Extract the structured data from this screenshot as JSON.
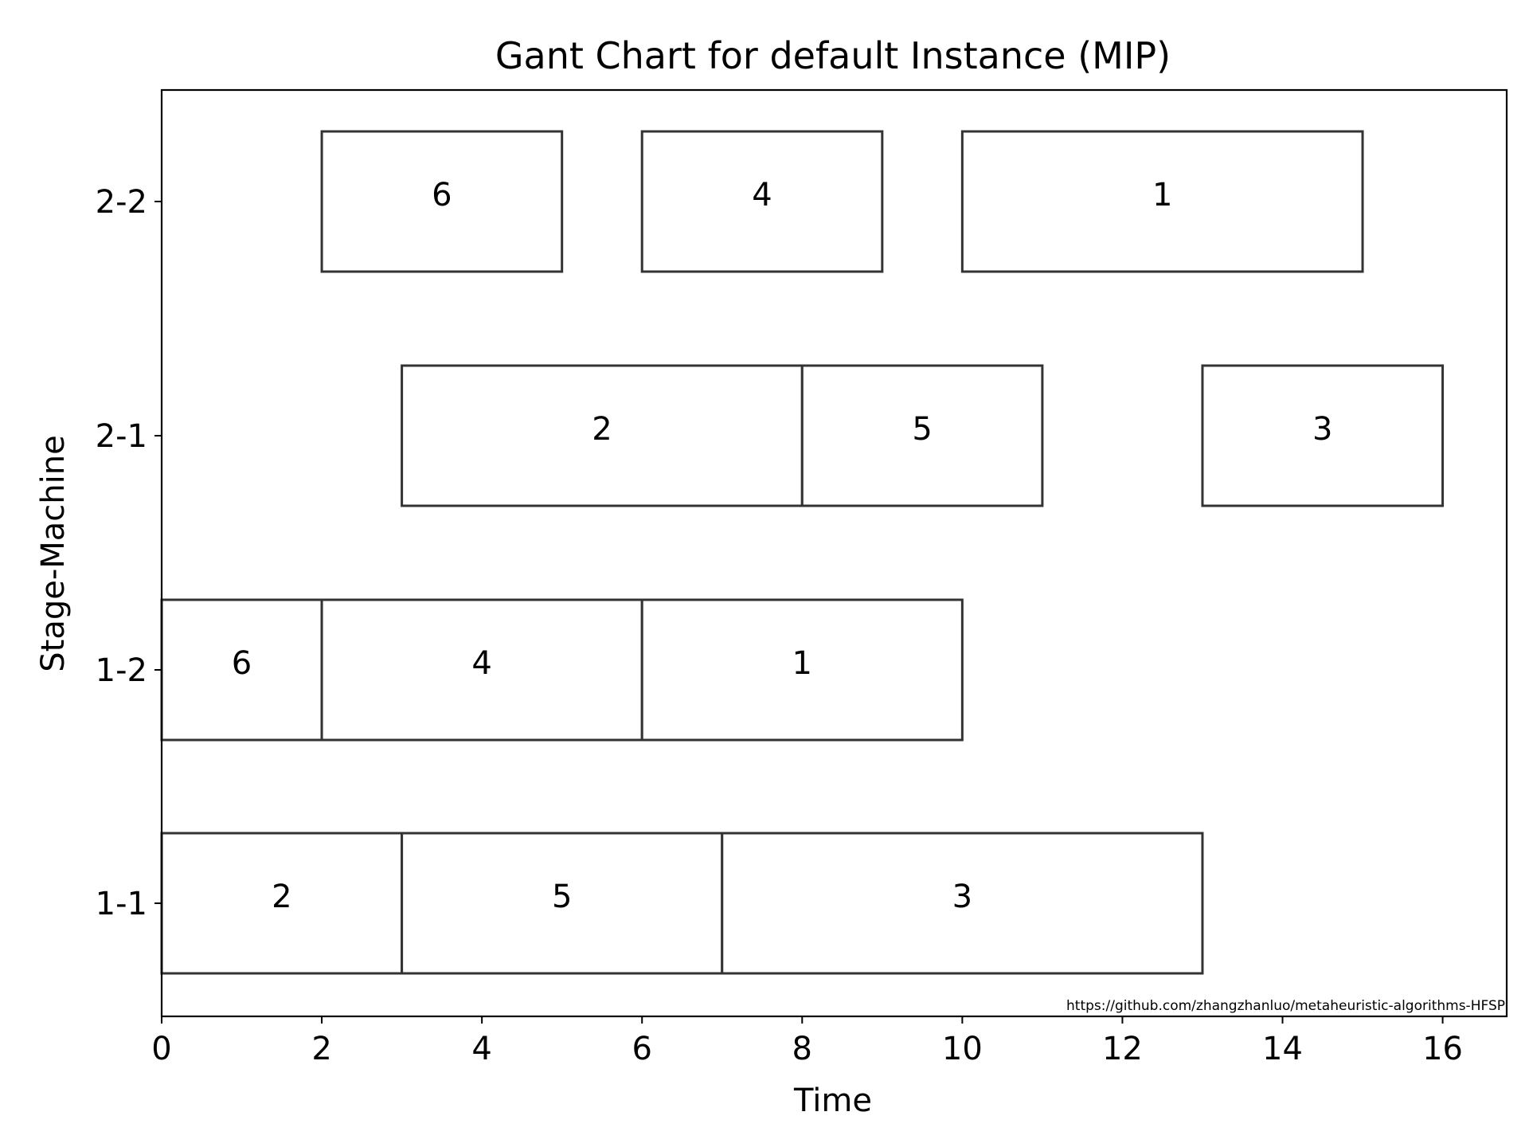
{
  "chart_data": {
    "type": "gantt",
    "title": "Gant Chart for default Instance (MIP)",
    "xlabel": "Time",
    "ylabel": "Stage-Machine",
    "xlim": [
      0,
      16.8
    ],
    "xticks": [
      0,
      2,
      4,
      6,
      8,
      10,
      12,
      14,
      16
    ],
    "machines": [
      "1-1",
      "1-2",
      "2-1",
      "2-2"
    ],
    "watermark": "https://github.com/zhangzhanluo/metaheuristic-algorithms-HFSP",
    "colors": {
      "bar_edge": "#333333",
      "bar_fill": "#ffffff",
      "axes": "#000000"
    },
    "tasks": [
      {
        "machine": "1-1",
        "job": "2",
        "start": 0,
        "end": 3
      },
      {
        "machine": "1-1",
        "job": "5",
        "start": 3,
        "end": 7
      },
      {
        "machine": "1-1",
        "job": "3",
        "start": 7,
        "end": 13
      },
      {
        "machine": "1-2",
        "job": "6",
        "start": 0,
        "end": 2
      },
      {
        "machine": "1-2",
        "job": "4",
        "start": 2,
        "end": 6
      },
      {
        "machine": "1-2",
        "job": "1",
        "start": 6,
        "end": 10
      },
      {
        "machine": "2-1",
        "job": "2",
        "start": 3,
        "end": 8
      },
      {
        "machine": "2-1",
        "job": "5",
        "start": 8,
        "end": 11
      },
      {
        "machine": "2-1",
        "job": "3",
        "start": 13,
        "end": 16
      },
      {
        "machine": "2-2",
        "job": "6",
        "start": 2,
        "end": 5
      },
      {
        "machine": "2-2",
        "job": "4",
        "start": 6,
        "end": 9
      },
      {
        "machine": "2-2",
        "job": "1",
        "start": 10,
        "end": 15
      }
    ]
  }
}
